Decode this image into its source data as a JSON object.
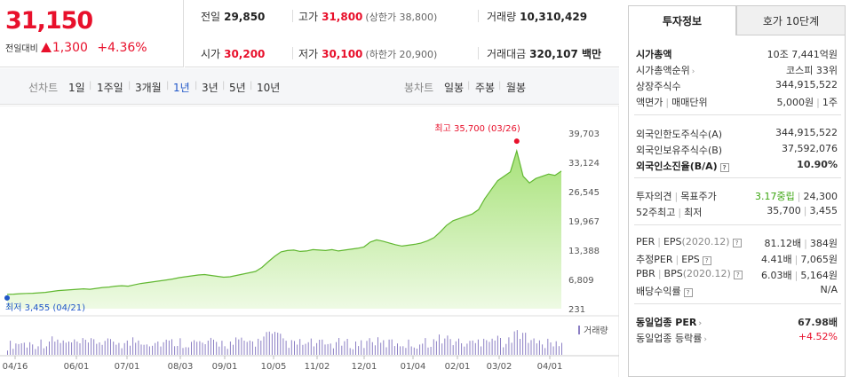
{
  "price": {
    "current": "31,150",
    "change_label": "전일대비",
    "change_value": "1,300",
    "change_pct": "+4.36%"
  },
  "stats": {
    "prev_label": "전일",
    "prev_value": "29,850",
    "high_label": "고가",
    "high_value": "31,800",
    "high_limit": "(상한가 38,800)",
    "volume_label": "거래량",
    "volume_value": "10,310,429",
    "open_label": "시가",
    "open_value": "30,200",
    "low_label": "저가",
    "low_value": "30,100",
    "low_limit": "(하한가 20,900)",
    "amount_label": "거래대금",
    "amount_value": "320,107 백만"
  },
  "tabs": {
    "line_label": "선차트",
    "periods": [
      "1일",
      "1주일",
      "3개월",
      "1년",
      "3년",
      "5년",
      "10년"
    ],
    "active_period": "1년",
    "candle_label": "봉차트",
    "candles": [
      "일봉",
      "주봉",
      "월봉"
    ]
  },
  "chart_data": {
    "type": "area",
    "y_ticks": [
      "39,703",
      "33,124",
      "26,545",
      "19,967",
      "13,388",
      "6,809",
      "231"
    ],
    "ylim": [
      231,
      39703
    ],
    "x_labels": [
      "04/16",
      "06/01",
      "07/01",
      "08/03",
      "09/01",
      "10/05",
      "11/02",
      "12/01",
      "01/04",
      "02/01",
      "03/02",
      "04/01"
    ],
    "high_annotation": "최고 35,700 (03/26)",
    "low_annotation": "최저 3,455 (04/21)",
    "volume_legend": "거래량",
    "series": [
      {
        "values": [
          3455,
          3500,
          3600,
          3650,
          3700,
          3800,
          3900,
          4100,
          4300,
          4400,
          4500,
          4600,
          4700,
          4600,
          4800,
          5000,
          5100,
          5300,
          5400,
          5300,
          5600,
          5900,
          6100,
          6300,
          6500,
          6700,
          6900,
          7200,
          7400,
          7600,
          7800,
          7900,
          7700,
          7500,
          7300,
          7400,
          7700,
          8000,
          8300,
          8600,
          9500,
          10800,
          12000,
          13000,
          13300,
          13400,
          13100,
          13200,
          13500,
          13400,
          13300,
          13500,
          13200,
          13400,
          13600,
          13800,
          14100,
          15200,
          15700,
          15400,
          15000,
          14600,
          14300,
          14500,
          14700,
          15000,
          15500,
          16200,
          17500,
          19000,
          20000,
          20500,
          21000,
          21500,
          22500,
          25000,
          27000,
          29000,
          30000,
          31000,
          35700,
          30000,
          28500,
          29500,
          30000,
          30500,
          30200,
          31150
        ]
      }
    ],
    "volume_color": "#8c7fc4",
    "line_color": "#62b832",
    "fill_color": "#c8eda6"
  },
  "invest": {
    "tab_active": "투자정보",
    "tab_other": "호가 10단계",
    "market_cap_label": "시가총액",
    "market_cap_value": "10조 7,441억원",
    "market_rank_label": "시가총액순위",
    "market_rank_value": "코스피 33위",
    "shares_label": "상장주식수",
    "shares_value": "344,915,522",
    "par_label": "액면가",
    "trade_unit_label": "매매단위",
    "par_value": "5,000원",
    "trade_unit_value": "1주",
    "foreign_limit_label": "외국인한도주식수(A)",
    "foreign_limit_value": "344,915,522",
    "foreign_hold_label": "외국인보유주식수(B)",
    "foreign_hold_value": "37,592,076",
    "foreign_ratio_label": "외국인소진율(B/A)",
    "foreign_ratio_value": "10.90%",
    "opinion_label": "투자의견",
    "target_label": "목표주가",
    "opinion_value": "3.17중립",
    "target_value": "24,300",
    "w52_high_label": "52주최고",
    "w52_low_label": "최저",
    "w52_high_value": "35,700",
    "w52_low_value": "3,455",
    "per_label": "PER",
    "eps_label": "EPS",
    "eps_year": "(2020.12)",
    "per_value": "81.12배",
    "eps_value": "384원",
    "est_per_label": "추정PER",
    "est_eps_label": "EPS",
    "est_per_value": "4.41배",
    "est_eps_value": "7,065원",
    "pbr_label": "PBR",
    "bps_label": "BPS",
    "bps_year": "(2020.12)",
    "pbr_value": "6.03배",
    "bps_value": "5,164원",
    "div_label": "배당수익률",
    "div_value": "N/A",
    "sector_per_label": "동일업종 PER",
    "sector_per_value": "67.98배",
    "sector_rate_label": "동일업종 등락률",
    "sector_rate_value": "+4.52%"
  }
}
